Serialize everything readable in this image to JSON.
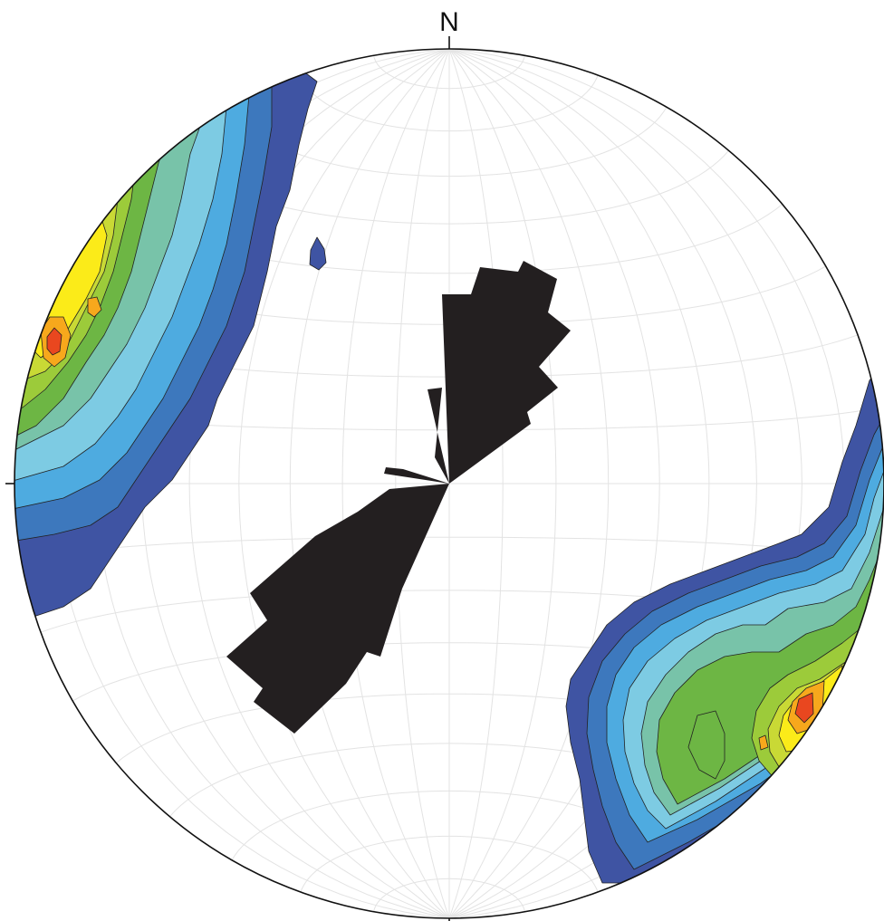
{
  "north_label": "N",
  "figure": {
    "type": "equal-area stereonet with pole density contours and rose diagram",
    "colors": {
      "level1": "#3f54a3",
      "level2": "#3d78bd",
      "level3": "#4eabe0",
      "level4": "#7dcbe3",
      "level5": "#78c3a9",
      "level6": "#6db644",
      "level7": "#9ccb3a",
      "level8": "#c9d935",
      "level9": "#fbeb19",
      "level10": "#f7a81c",
      "level11": "#e9471f",
      "rose": "#231f20"
    }
  }
}
